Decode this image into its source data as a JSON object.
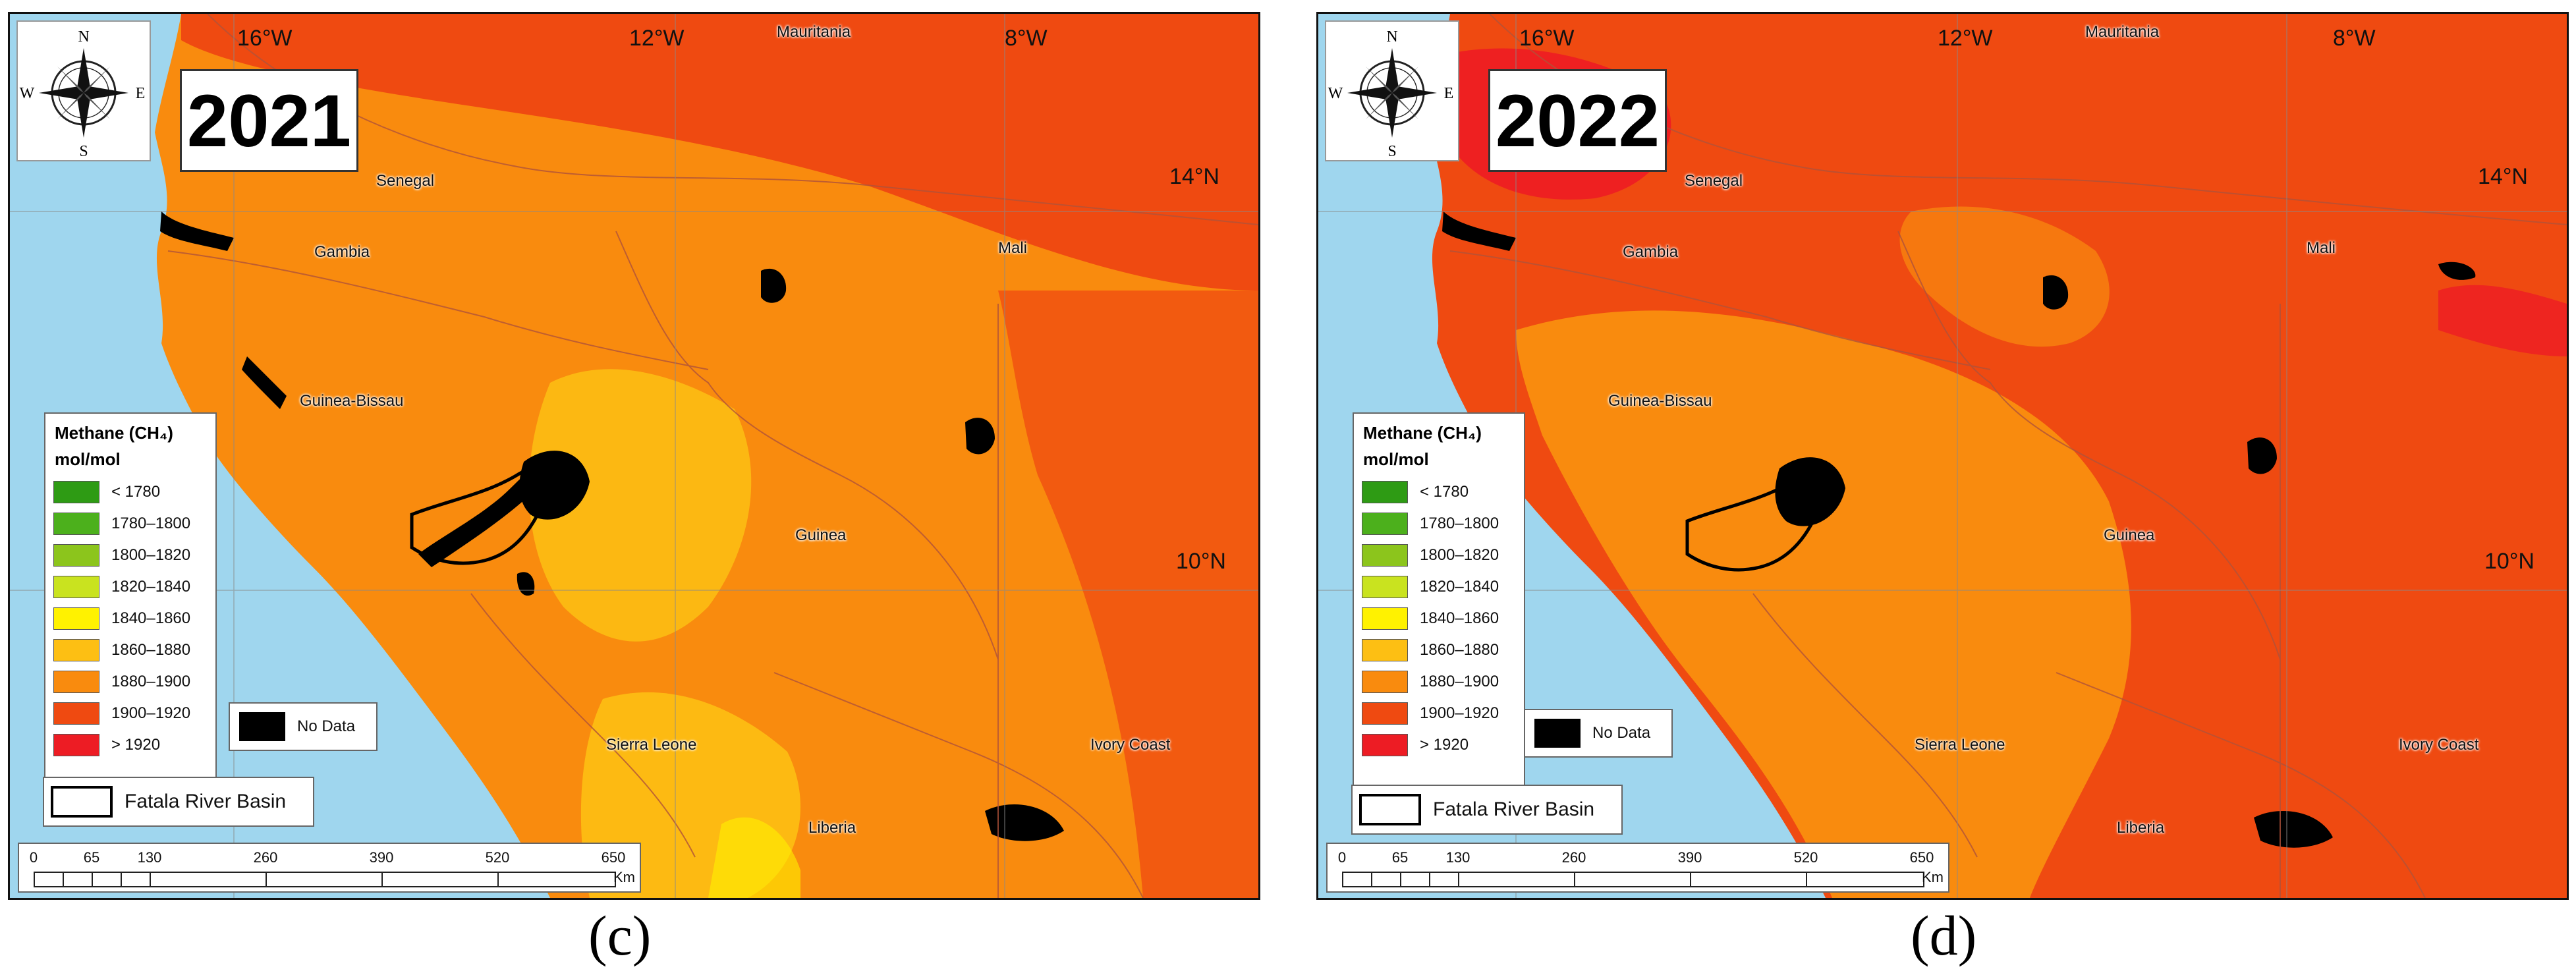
{
  "panels": [
    {
      "id": "c",
      "year": "2021",
      "caption": "(c)",
      "regime": "orange"
    },
    {
      "id": "d",
      "year": "2022",
      "caption": "(d)",
      "regime": "red"
    }
  ],
  "grid_labels": {
    "lon": [
      "16°W",
      "12°W",
      "8°W"
    ],
    "lat": [
      "14°N",
      "10°N"
    ]
  },
  "countries": [
    "Mauritania",
    "Senegal",
    "Gambia",
    "Mali",
    "Guinea-Bissau",
    "Guinea",
    "Sierra Leone",
    "Ivory Coast",
    "Liberia"
  ],
  "compass": {
    "n": "N",
    "s": "S",
    "e": "E",
    "w": "W"
  },
  "legend": {
    "title": "Methane (CH₄)",
    "unit": "mol/mol",
    "items": [
      {
        "label": "< 1780",
        "color": "#2e9b14"
      },
      {
        "label": "1780–1800",
        "color": "#4cb01c"
      },
      {
        "label": "1800–1820",
        "color": "#8cc51c"
      },
      {
        "label": "1820–1840",
        "color": "#c9e31f"
      },
      {
        "label": "1840–1860",
        "color": "#fff200"
      },
      {
        "label": "1860–1880",
        "color": "#fdbf13"
      },
      {
        "label": "1880–1900",
        "color": "#f98b0e"
      },
      {
        "label": "1900–1920",
        "color": "#ef4a11"
      },
      {
        "label": "> 1920",
        "color": "#ed1c24"
      }
    ],
    "no_data": "No Data",
    "basin": "Fatala River Basin"
  },
  "scale_bar": {
    "ticks": [
      "0",
      "65",
      "130",
      "260",
      "390",
      "520",
      "650"
    ],
    "unit": "Km"
  },
  "colors": {
    "ocean": "#9fd6ee",
    "no_data": "#000000",
    "border": "#b0523a"
  }
}
